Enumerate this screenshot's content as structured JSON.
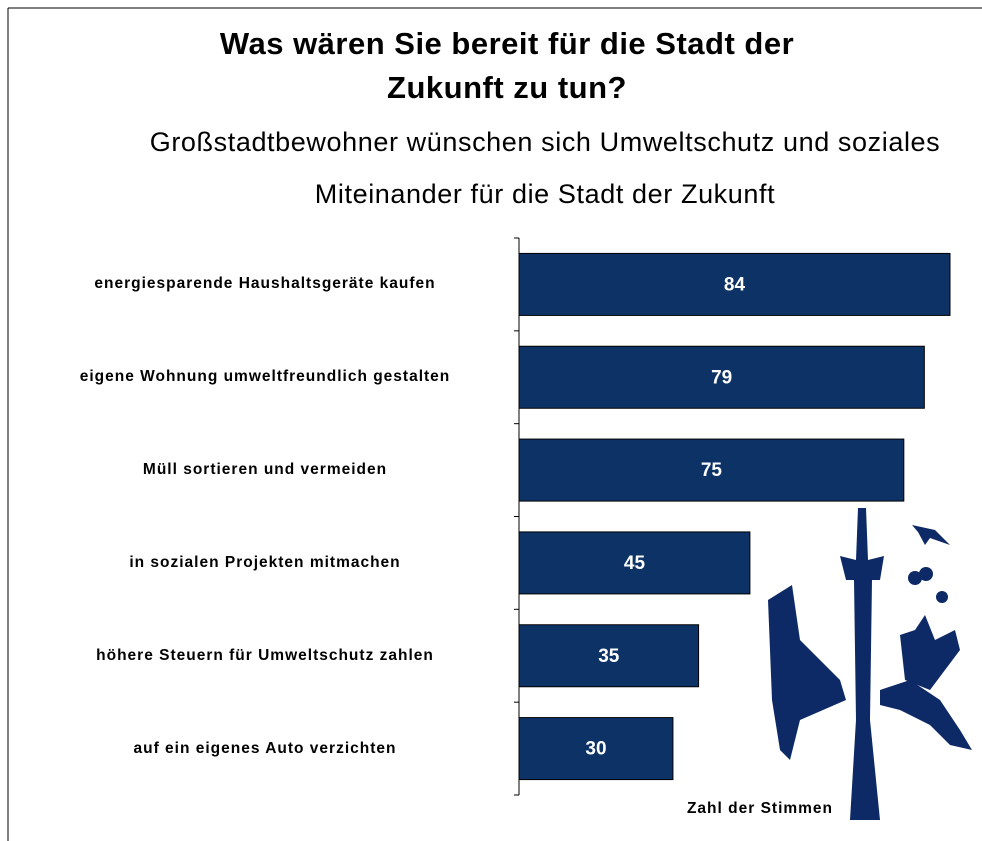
{
  "chart_data": {
    "type": "bar",
    "orientation": "horizontal",
    "title": "Was wären Sie bereit für die Stadt der Zukunft zu tun?",
    "subtitle": "Großstadtbewohner wünschen sich Umweltschutz und soziales Miteinander für die Stadt der Zukunft",
    "x_label": "Zahl der Stimmen",
    "categories": [
      "energiesparende Haushaltsgeräte kaufen",
      "eigene Wohnung umweltfreundlich gestalten",
      "Müll sortieren und vermeiden",
      "in sozialen Projekten mitmachen",
      "höhere Steuern für Umweltschutz zahlen",
      "auf ein eigenes Auto verzichten"
    ],
    "values": [
      84,
      79,
      75,
      45,
      35,
      30
    ],
    "color": "#0d3366"
  }
}
